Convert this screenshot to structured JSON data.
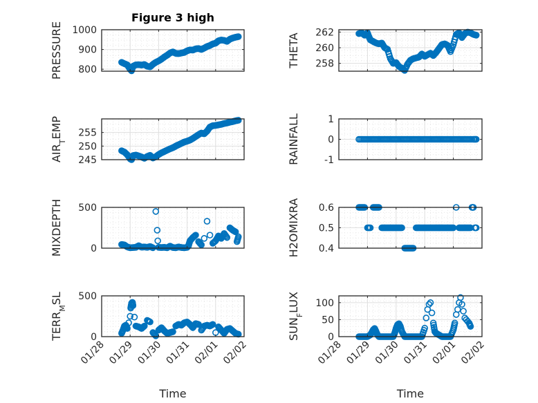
{
  "figure": {
    "title": "Figure 3 high",
    "marker_color": "#0072bd",
    "axes_color": "#262626",
    "grid_color": "#dfdfdf"
  },
  "chart_data": [
    {
      "type": "scatter",
      "name": "pressure",
      "title": "Figure 3 high",
      "ylabel": "PRESSURE",
      "ylabel_sub": "",
      "xlabel": "",
      "xlim_days": [
        0,
        5
      ],
      "x_start_date": "01/28",
      "ylim": [
        790,
        1000
      ],
      "yticks": [
        800,
        900,
        1000
      ],
      "xticklabels": [],
      "show_xticklabels": false,
      "x": [
        0.7,
        0.8,
        0.9,
        1.0,
        1.05,
        1.1,
        1.2,
        1.3,
        1.4,
        1.5,
        1.6,
        1.7,
        1.8,
        1.9,
        2.0,
        2.1,
        2.2,
        2.3,
        2.4,
        2.5,
        2.6,
        2.7,
        2.8,
        2.9,
        3.0,
        3.1,
        3.2,
        3.3,
        3.4,
        3.5,
        3.6,
        3.7,
        3.8,
        3.9,
        4.0,
        4.1,
        4.2,
        4.3,
        4.4,
        4.5,
        4.6,
        4.7,
        4.8
      ],
      "y": [
        835,
        828,
        822,
        800,
        792,
        815,
        822,
        823,
        821,
        824,
        815,
        812,
        825,
        835,
        842,
        851,
        862,
        871,
        882,
        888,
        880,
        879,
        882,
        885,
        893,
        898,
        897,
        903,
        905,
        900,
        907,
        915,
        920,
        928,
        932,
        944,
        948,
        946,
        941,
        952,
        958,
        962,
        965
      ]
    },
    {
      "type": "scatter",
      "name": "theta",
      "ylabel": "THETA",
      "ylabel_sub": "",
      "xlabel": "",
      "xlim_days": [
        0,
        5
      ],
      "ylim": [
        257,
        262.3
      ],
      "yticks": [
        258,
        260,
        262
      ],
      "xticklabels": [],
      "show_xticklabels": false,
      "x": [
        0.7,
        0.8,
        0.9,
        1.0,
        1.05,
        1.1,
        1.2,
        1.3,
        1.4,
        1.5,
        1.6,
        1.7,
        1.8,
        1.9,
        2.0,
        2.1,
        2.2,
        2.3,
        2.4,
        2.5,
        2.6,
        2.7,
        2.8,
        2.9,
        3.0,
        3.1,
        3.2,
        3.3,
        3.4,
        3.5,
        3.6,
        3.7,
        3.8,
        3.9,
        4.0,
        4.1,
        4.2,
        4.3,
        4.4,
        4.5,
        4.6,
        4.7,
        4.8
      ],
      "y": [
        261.8,
        261.9,
        261.6,
        261.9,
        261.4,
        261.0,
        260.8,
        260.6,
        260.5,
        260.6,
        260.0,
        259.8,
        258.6,
        258.0,
        258.1,
        257.6,
        257.4,
        257.1,
        257.9,
        258.4,
        258.6,
        258.7,
        258.8,
        259.2,
        258.9,
        259.1,
        259.3,
        259.0,
        259.4,
        259.9,
        260.4,
        260.5,
        260.3,
        259.5,
        260.4,
        261.7,
        261.9,
        261.3,
        261.8,
        262.0,
        261.9,
        261.7,
        261.6
      ]
    },
    {
      "type": "scatter",
      "name": "air_temp",
      "ylabel": "AIR",
      "ylabel_sub": "T",
      "ylabel_rest": "EMP",
      "xlabel": "",
      "xlim_days": [
        0,
        5
      ],
      "ylim": [
        245,
        260
      ],
      "yticks": [
        245,
        250,
        255
      ],
      "xticklabels": [],
      "show_xticklabels": false,
      "x": [
        0.7,
        0.8,
        0.9,
        1.0,
        1.05,
        1.1,
        1.2,
        1.3,
        1.4,
        1.5,
        1.6,
        1.7,
        1.8,
        1.9,
        2.0,
        2.1,
        2.2,
        2.3,
        2.4,
        2.5,
        2.6,
        2.7,
        2.8,
        2.9,
        3.0,
        3.1,
        3.2,
        3.3,
        3.4,
        3.5,
        3.6,
        3.7,
        3.8,
        3.9,
        4.0,
        4.1,
        4.2,
        4.3,
        4.4,
        4.5,
        4.6,
        4.7,
        4.8
      ],
      "y": [
        248.3,
        247.8,
        246.8,
        245.3,
        245.0,
        246.5,
        246.7,
        246.4,
        246.0,
        245.5,
        246.2,
        246.6,
        245.6,
        246.1,
        246.9,
        247.5,
        248.0,
        248.5,
        249.0,
        249.4,
        250.0,
        250.5,
        251.0,
        251.5,
        251.8,
        252.2,
        252.8,
        253.5,
        254.2,
        254.8,
        254.5,
        255.5,
        257.0,
        257.5,
        257.6,
        257.8,
        258.0,
        258.3,
        258.5,
        258.8,
        259.0,
        259.3,
        259.5
      ]
    },
    {
      "type": "scatter",
      "name": "rainfall",
      "ylabel": "RAINFALL",
      "ylabel_sub": "",
      "xlabel": "",
      "xlim_days": [
        0,
        5
      ],
      "ylim": [
        -1,
        1
      ],
      "yticks": [
        -1,
        0,
        1
      ],
      "xticklabels": [],
      "show_xticklabels": false,
      "x": [
        0.7,
        0.9,
        1.1,
        1.3,
        1.5,
        1.7,
        1.9,
        2.1,
        2.3,
        2.5,
        2.7,
        2.9,
        3.1,
        3.3,
        3.5,
        3.7,
        3.9,
        4.1,
        4.3,
        4.5,
        4.7,
        4.8
      ],
      "y": [
        0,
        0,
        0,
        0,
        0,
        0,
        0,
        0,
        0,
        0,
        0,
        0,
        0,
        0,
        0,
        0,
        0,
        0,
        0,
        0,
        0,
        0
      ]
    },
    {
      "type": "scatter",
      "name": "mixdepth",
      "ylabel": "MIXDEPTH",
      "ylabel_sub": "",
      "xlabel": "",
      "xlim_days": [
        0,
        5
      ],
      "ylim": [
        0,
        500
      ],
      "yticks": [
        0,
        500
      ],
      "xticklabels": [],
      "show_xticklabels": false,
      "x": [
        0.7,
        0.8,
        0.9,
        1.0,
        1.1,
        1.2,
        1.3,
        1.4,
        1.5,
        1.6,
        1.7,
        1.8,
        1.9,
        1.95,
        1.97,
        2.0,
        2.1,
        2.2,
        2.3,
        2.4,
        2.5,
        2.6,
        2.7,
        2.8,
        2.9,
        3.0,
        3.05,
        3.1,
        3.2,
        3.3,
        3.4,
        3.5,
        3.6,
        3.7,
        3.8,
        3.9,
        4.0,
        4.1,
        4.2,
        4.3,
        4.4,
        4.5,
        4.6,
        4.7,
        4.75,
        4.8
      ],
      "y": [
        45,
        40,
        15,
        5,
        8,
        10,
        30,
        12,
        15,
        10,
        20,
        5,
        450,
        220,
        90,
        10,
        8,
        10,
        5,
        25,
        8,
        5,
        15,
        8,
        5,
        10,
        30,
        90,
        130,
        160,
        80,
        40,
        120,
        330,
        160,
        60,
        90,
        150,
        120,
        180,
        130,
        250,
        220,
        200,
        80,
        140
      ]
    },
    {
      "type": "scatter",
      "name": "h2omixra",
      "ylabel": "H2OMIXRA",
      "ylabel_sub": "",
      "xlabel": "",
      "xlim_days": [
        0,
        5
      ],
      "ylim": [
        0.4,
        0.6
      ],
      "yticks": [
        0.4,
        0.5,
        0.6
      ],
      "xticklabels": [],
      "show_xticklabels": false,
      "x": [
        0.7,
        0.8,
        0.9,
        1.0,
        1.1,
        1.2,
        1.3,
        1.4,
        1.5,
        1.6,
        1.7,
        1.8,
        1.9,
        2.0,
        2.1,
        2.2,
        2.3,
        2.4,
        2.5,
        2.6,
        2.7,
        2.8,
        2.9,
        3.0,
        3.1,
        3.2,
        3.3,
        3.4,
        3.5,
        3.6,
        3.7,
        3.8,
        3.9,
        4.0,
        4.1,
        4.2,
        4.3,
        4.4,
        4.5,
        4.6,
        4.65,
        4.7,
        4.75,
        4.8
      ],
      "y": [
        0.6,
        0.6,
        0.6,
        0.5,
        0.5,
        0.6,
        0.6,
        0.6,
        0.5,
        0.5,
        0.5,
        0.5,
        0.5,
        0.5,
        0.5,
        0.5,
        0.4,
        0.4,
        0.4,
        0.4,
        0.5,
        0.5,
        0.5,
        0.5,
        0.5,
        0.5,
        0.5,
        0.5,
        0.5,
        0.5,
        0.5,
        0.5,
        0.5,
        0.5,
        0.6,
        0.5,
        0.5,
        0.5,
        0.5,
        0.5,
        0.6,
        0.6,
        0.5,
        0.5
      ]
    },
    {
      "type": "scatter",
      "name": "terr_msl",
      "ylabel": "TERR",
      "ylabel_sub": "M",
      "ylabel_rest": "SL",
      "xlabel": "Time",
      "xlim_days": [
        0,
        5
      ],
      "ylim": [
        0,
        500
      ],
      "yticks": [
        0,
        500
      ],
      "xticklabels": [
        "01/28",
        "01/29",
        "01/30",
        "01/31",
        "02/01",
        "02/02"
      ],
      "show_xticklabels": true,
      "x": [
        0.7,
        0.75,
        0.8,
        0.85,
        0.9,
        0.95,
        1.0,
        1.02,
        1.05,
        1.08,
        1.1,
        1.15,
        1.2,
        1.3,
        1.4,
        1.5,
        1.6,
        1.7,
        1.8,
        1.9,
        2.0,
        2.1,
        2.2,
        2.3,
        2.4,
        2.5,
        2.6,
        2.7,
        2.8,
        2.9,
        3.0,
        3.1,
        3.2,
        3.3,
        3.4,
        3.5,
        3.6,
        3.7,
        3.8,
        3.9,
        4.0,
        4.1,
        4.2,
        4.3,
        4.4,
        4.5,
        4.6,
        4.7,
        4.8
      ],
      "y": [
        40,
        80,
        130,
        140,
        100,
        170,
        250,
        350,
        410,
        420,
        380,
        240,
        130,
        120,
        100,
        130,
        200,
        180,
        50,
        10,
        80,
        110,
        70,
        40,
        50,
        60,
        130,
        150,
        140,
        170,
        180,
        150,
        110,
        160,
        150,
        80,
        130,
        140,
        130,
        150,
        50,
        120,
        80,
        40,
        90,
        100,
        70,
        40,
        30
      ]
    },
    {
      "type": "scatter",
      "name": "sun_flux",
      "ylabel": "SUN",
      "ylabel_sub": "F",
      "ylabel_rest": "LUX",
      "xlabel": "Time",
      "xlim_days": [
        0,
        5
      ],
      "ylim": [
        0,
        120
      ],
      "yticks": [
        0,
        50,
        100
      ],
      "xticklabels": [
        "01/28",
        "01/29",
        "01/30",
        "01/31",
        "02/01",
        "02/02"
      ],
      "show_xticklabels": true,
      "x": [
        0.7,
        0.8,
        0.9,
        1.0,
        1.1,
        1.15,
        1.2,
        1.25,
        1.3,
        1.35,
        1.4,
        1.5,
        1.6,
        1.7,
        1.8,
        1.9,
        1.95,
        2.0,
        2.05,
        2.1,
        2.15,
        2.2,
        2.3,
        2.4,
        2.5,
        2.6,
        2.7,
        2.8,
        2.9,
        3.0,
        3.05,
        3.1,
        3.15,
        3.2,
        3.25,
        3.3,
        3.35,
        3.4,
        3.5,
        3.6,
        3.7,
        3.8,
        3.9,
        4.0,
        4.05,
        4.1,
        4.15,
        4.2,
        4.25,
        4.3,
        4.35,
        4.4,
        4.45,
        4.5,
        4.55,
        4.6
      ],
      "y": [
        0,
        0,
        0,
        0,
        5,
        12,
        20,
        24,
        15,
        5,
        0,
        0,
        0,
        0,
        0,
        0,
        10,
        25,
        35,
        38,
        30,
        15,
        0,
        0,
        0,
        0,
        0,
        0,
        0,
        25,
        55,
        80,
        95,
        100,
        70,
        40,
        15,
        10,
        5,
        0,
        0,
        0,
        0,
        20,
        40,
        65,
        80,
        100,
        115,
        95,
        75,
        55,
        50,
        45,
        40,
        30
      ]
    }
  ]
}
